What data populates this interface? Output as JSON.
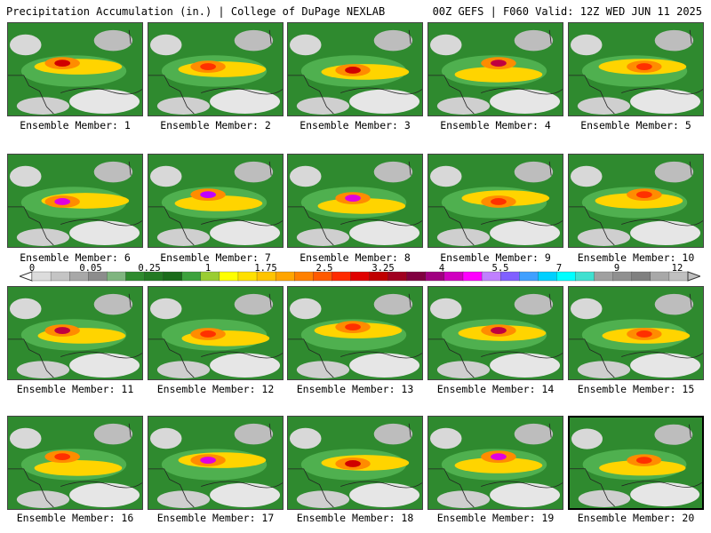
{
  "header": {
    "title_left": "Precipitation Accumulation (in.) | College of DuPage NEXLAB",
    "title_right": "00Z GEFS | F060 Valid: 12Z WED JUN 11 2025"
  },
  "panels": [
    {
      "label": "Ensemble Member: 1",
      "peak": 3.25
    },
    {
      "label": "Ensemble Member: 2",
      "peak": 2.5
    },
    {
      "label": "Ensemble Member: 3",
      "peak": 3.25
    },
    {
      "label": "Ensemble Member: 4",
      "peak": 4
    },
    {
      "label": "Ensemble Member: 5",
      "peak": 2.5
    },
    {
      "label": "Ensemble Member: 6",
      "peak": 5.5
    },
    {
      "label": "Ensemble Member: 7",
      "peak": 7
    },
    {
      "label": "Ensemble Member: 8",
      "peak": 5.5
    },
    {
      "label": "Ensemble Member: 9",
      "peak": 2.5
    },
    {
      "label": "Ensemble Member: 10",
      "peak": 2.5
    },
    {
      "label": "Ensemble Member: 11",
      "peak": 4
    },
    {
      "label": "Ensemble Member: 12",
      "peak": 2.5
    },
    {
      "label": "Ensemble Member: 13",
      "peak": 2.5
    },
    {
      "label": "Ensemble Member: 14",
      "peak": 4
    },
    {
      "label": "Ensemble Member: 15",
      "peak": 2.5
    },
    {
      "label": "Ensemble Member: 16",
      "peak": 2.5
    },
    {
      "label": "Ensemble Member: 17",
      "peak": 5.5
    },
    {
      "label": "Ensemble Member: 18",
      "peak": 3.25
    },
    {
      "label": "Ensemble Member: 19",
      "peak": 5.5
    },
    {
      "label": "Ensemble Member: 20",
      "peak": 2.5,
      "selected": true
    }
  ],
  "colorbar": {
    "labels": [
      "0",
      "0.05",
      "0.25",
      "1",
      "1.75",
      "2.5",
      "3.25",
      "4",
      "5.5",
      "7",
      "9",
      "12"
    ],
    "colors": [
      "#dcdcdc",
      "#c4c4c4",
      "#a8a8a8",
      "#8c8c8c",
      "#7fb57f",
      "#2e8b2e",
      "#237a23",
      "#1a6b1a",
      "#3da23d",
      "#9acd32",
      "#ffff00",
      "#ffe000",
      "#ffc400",
      "#ffa500",
      "#ff8000",
      "#ff5a00",
      "#ff2a00",
      "#e00000",
      "#c00000",
      "#a00020",
      "#800040",
      "#a00080",
      "#d000c0",
      "#ff00ff",
      "#c080ff",
      "#8060ff",
      "#40a0ff",
      "#00d0ff",
      "#00ffff",
      "#40e0d0",
      "#a0a0a0",
      "#909090",
      "#808080",
      "#a8a8a8",
      "#c0c0c0"
    ]
  }
}
